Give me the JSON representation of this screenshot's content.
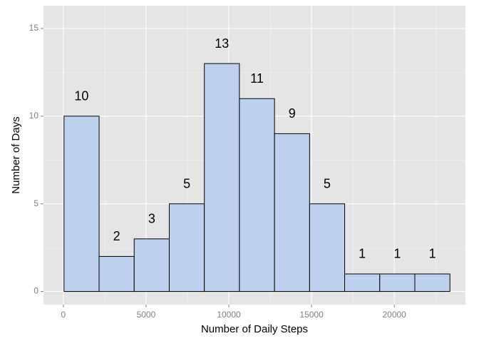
{
  "chart_data": {
    "type": "bar",
    "subtype": "histogram",
    "title": "",
    "xlabel": "Number of Daily Steps",
    "ylabel": "Number of Days",
    "xlim": [
      -1200,
      24300
    ],
    "ylim": [
      -0.75,
      16.3
    ],
    "x_ticks": [
      0,
      5000,
      10000,
      15000,
      20000
    ],
    "x_tick_labels": [
      "0",
      "5000",
      "10000",
      "15000",
      "20000"
    ],
    "y_ticks": [
      0,
      5,
      10,
      15
    ],
    "y_tick_labels": [
      "0",
      "5",
      "10",
      "15"
    ],
    "bins": [
      {
        "start": 41,
        "end": 2161,
        "value": 10,
        "label": "10"
      },
      {
        "start": 2161,
        "end": 4281,
        "value": 2,
        "label": "2"
      },
      {
        "start": 4281,
        "end": 6401,
        "value": 3,
        "label": "3"
      },
      {
        "start": 6401,
        "end": 8521,
        "value": 5,
        "label": "5"
      },
      {
        "start": 8521,
        "end": 10641,
        "value": 13,
        "label": "13"
      },
      {
        "start": 10641,
        "end": 12761,
        "value": 11,
        "label": "11"
      },
      {
        "start": 12761,
        "end": 14881,
        "value": 9,
        "label": "9"
      },
      {
        "start": 14881,
        "end": 17001,
        "value": 5,
        "label": "5"
      },
      {
        "start": 17001,
        "end": 19121,
        "value": 1,
        "label": "1"
      },
      {
        "start": 19121,
        "end": 21241,
        "value": 1,
        "label": "1"
      },
      {
        "start": 21241,
        "end": 23361,
        "value": 1,
        "label": "1"
      }
    ],
    "grid": true,
    "legend": "none",
    "colors": {
      "panel_background": "#e5e5e5",
      "grid_major": "#ffffff",
      "grid_minor": "#f2f2f2",
      "bar_fill": "#bdd1ee",
      "bar_stroke": "#000000",
      "tick_text": "#7f7f7f",
      "axis_title": "#000000"
    }
  }
}
